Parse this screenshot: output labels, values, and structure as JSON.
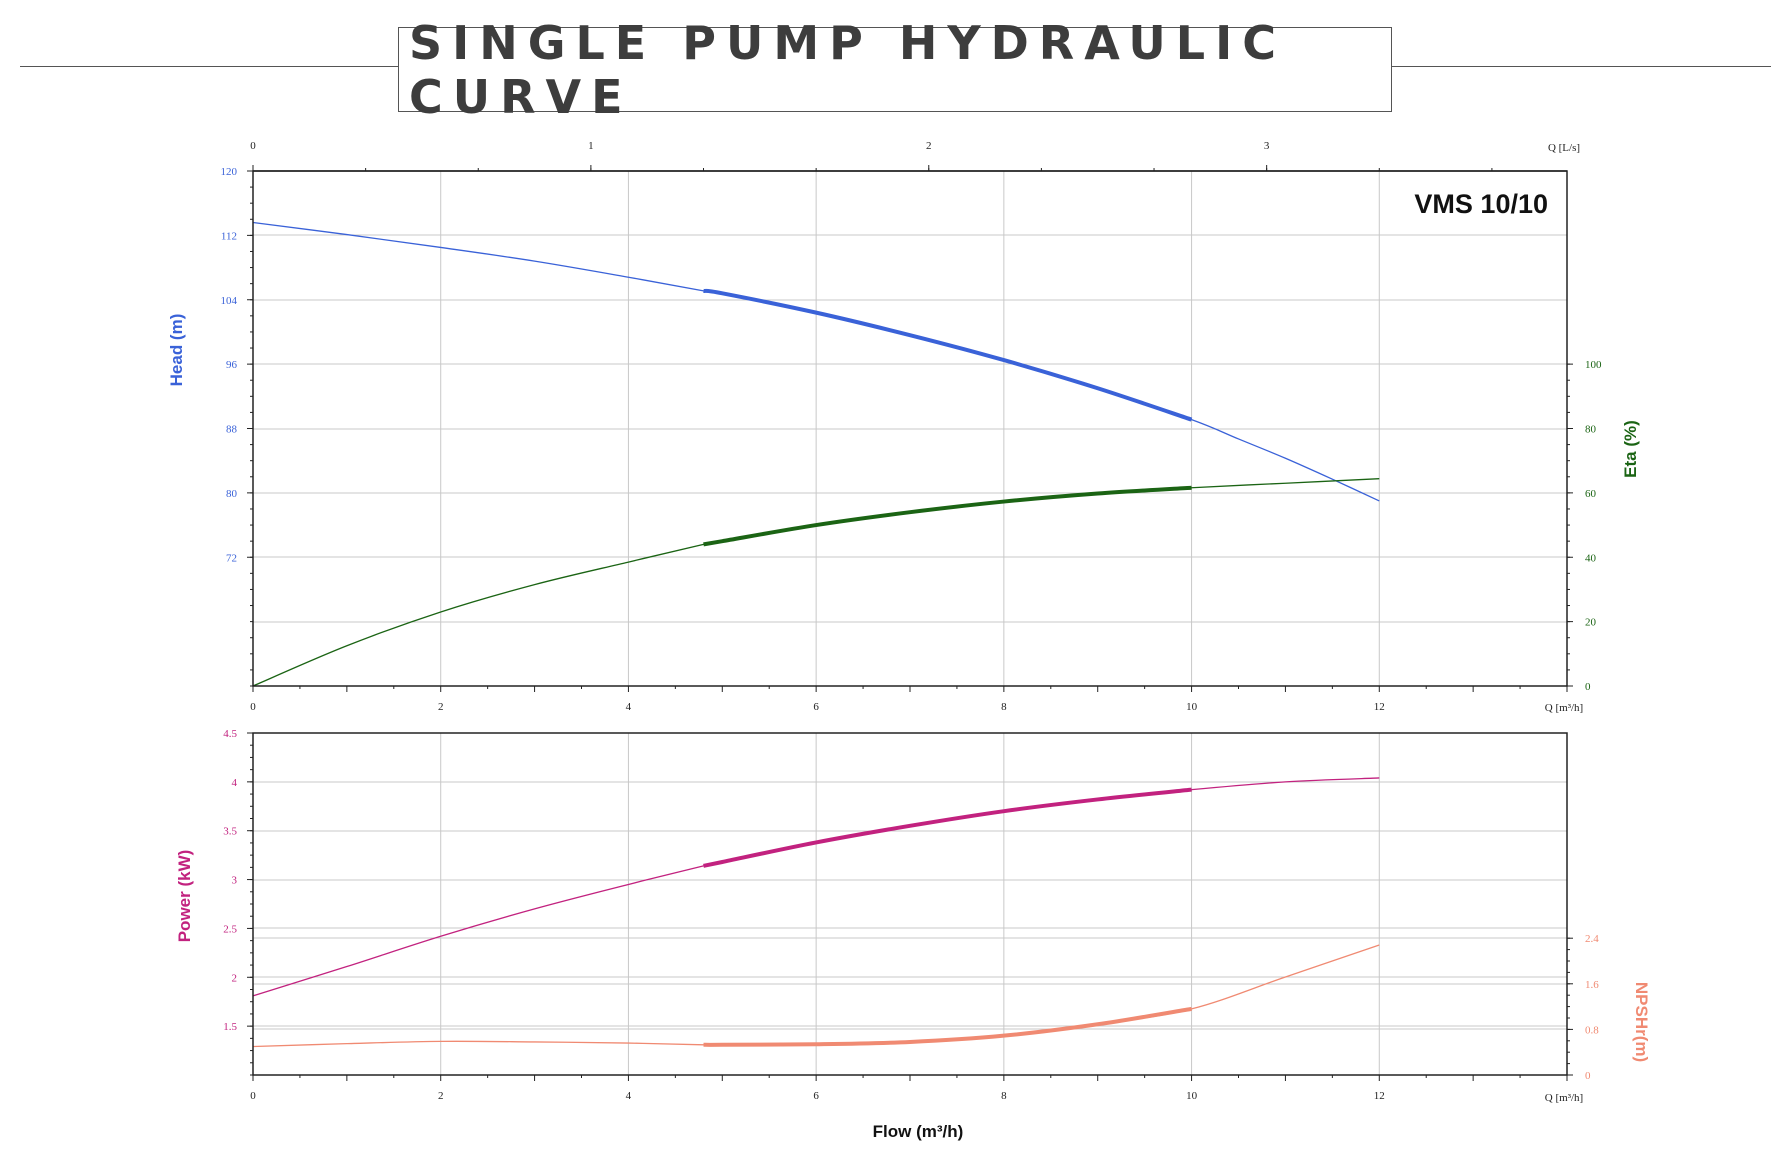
{
  "title": "SINGLE PUMP HYDRAULIC CURVE",
  "colors": {
    "head": "#3a62d8",
    "eta": "#1b6414",
    "power": "#c2227f",
    "npshr": "#f08a72",
    "axis": "#222222",
    "grid": "#c8c8c8",
    "text": "#222222"
  },
  "chart_data": [
    {
      "type": "line",
      "panel": "upper",
      "model_label": "VMS 10/10",
      "x_unit_label": "Q [m³/h]",
      "top_axis_label": "Q [L/s]",
      "x_ticks": [
        0,
        2,
        4,
        6,
        8,
        10,
        12
      ],
      "top_ticks": [
        0,
        1,
        2,
        3
      ],
      "xlim": [
        0,
        14
      ],
      "grid": true,
      "y_left": {
        "label": "Head (m)",
        "ylim": [
          56,
          120
        ],
        "ticks": [
          72,
          80,
          88,
          96,
          104,
          112,
          120
        ]
      },
      "y_right": {
        "label": "Eta (%)",
        "ylim": [
          0,
          160
        ],
        "ticks": [
          0,
          20,
          40,
          60,
          80,
          100
        ]
      },
      "series": [
        {
          "name": "Head (m)",
          "axis": "left",
          "color_key": "head",
          "highlight_range": [
            4.8,
            10
          ],
          "x": [
            0,
            1,
            2,
            3,
            4,
            4.8,
            5,
            6,
            7,
            8,
            9,
            10,
            10.5,
            11,
            11.5,
            12
          ],
          "y": [
            113.6,
            112.1,
            110.5,
            108.8,
            106.8,
            105.1,
            104.8,
            102.4,
            99.6,
            96.5,
            93.0,
            89.1,
            86.7,
            84.3,
            81.7,
            79.0
          ]
        },
        {
          "name": "Eta (%)",
          "axis": "right",
          "color_key": "eta",
          "highlight_range": [
            4.8,
            10
          ],
          "x": [
            0,
            1,
            2,
            3,
            4,
            4.8,
            5,
            6,
            7,
            8,
            9,
            10,
            11,
            12
          ],
          "y": [
            0,
            12.5,
            23,
            31.5,
            38.5,
            44,
            45,
            50,
            54,
            57.3,
            59.8,
            61.6,
            63,
            64.4
          ]
        }
      ]
    },
    {
      "type": "line",
      "panel": "lower",
      "x_unit_label": "Q [m³/h]",
      "xlabel": "Flow (m³/h)",
      "x_ticks": [
        0,
        2,
        4,
        6,
        8,
        10,
        12
      ],
      "xlim": [
        0,
        14
      ],
      "grid": true,
      "y_left": {
        "label": "Power (kW)",
        "ylim": [
          1,
          4.5
        ],
        "ticks": [
          1.5,
          2,
          2.5,
          3,
          3.5,
          4,
          4.5
        ]
      },
      "y_right": {
        "label": "NPSHr(m)",
        "ylim": [
          0,
          6
        ],
        "ticks": [
          0,
          0.8,
          1.6,
          2.4
        ]
      },
      "series": [
        {
          "name": "Power (kW)",
          "axis": "left",
          "color_key": "power",
          "highlight_range": [
            4.8,
            10
          ],
          "x": [
            0,
            1,
            2,
            3,
            4,
            4.8,
            5,
            6,
            7,
            8,
            9,
            10,
            11,
            12
          ],
          "y": [
            1.81,
            2.11,
            2.42,
            2.7,
            2.95,
            3.14,
            3.18,
            3.38,
            3.55,
            3.7,
            3.82,
            3.92,
            4.0,
            4.04
          ]
        },
        {
          "name": "NPSHr(m)",
          "axis": "right",
          "color_key": "npshr",
          "highlight_range": [
            4.8,
            10
          ],
          "x": [
            0,
            1,
            2,
            3,
            4,
            4.8,
            5,
            6,
            7,
            8,
            9,
            10,
            11,
            12
          ],
          "y": [
            0.5,
            0.55,
            0.59,
            0.58,
            0.56,
            0.53,
            0.53,
            0.54,
            0.58,
            0.69,
            0.89,
            1.16,
            1.72,
            2.28
          ]
        }
      ]
    }
  ]
}
